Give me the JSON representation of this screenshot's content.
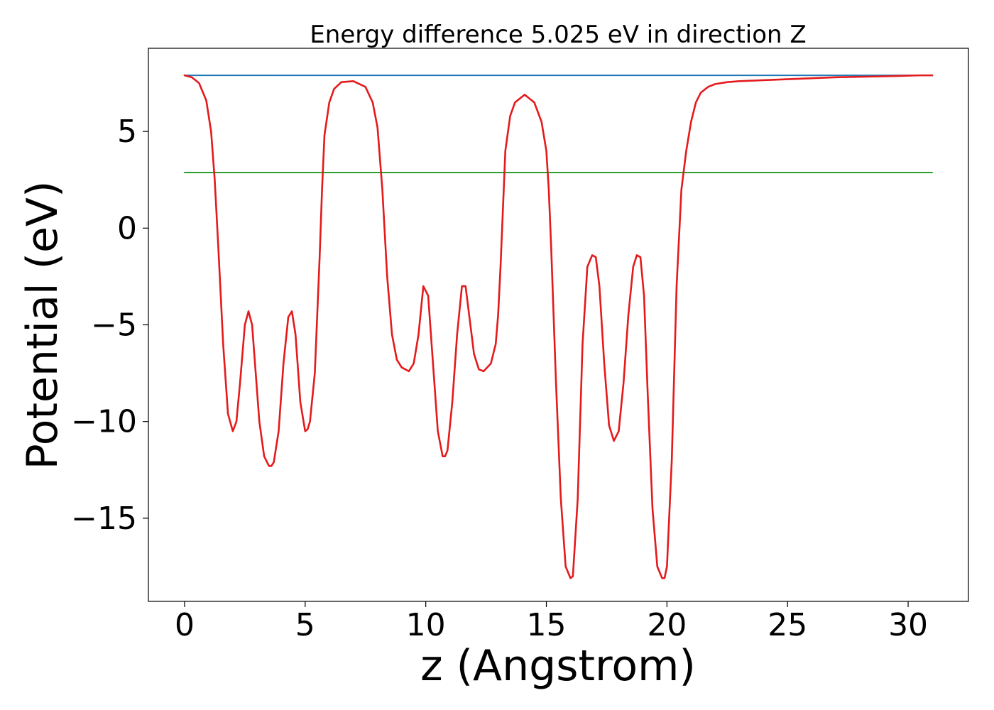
{
  "chart_data": {
    "type": "line",
    "title": "Energy difference 5.025 eV in direction Z",
    "xlabel": "z (Angstrom)",
    "ylabel": "Potential (eV)",
    "xlim": [
      -1.5,
      32.5
    ],
    "ylim": [
      -19.3,
      9.3
    ],
    "x_ticks": [
      0,
      5,
      10,
      15,
      20,
      25,
      30
    ],
    "y_ticks": [
      -15,
      -10,
      -5,
      0,
      5
    ],
    "x_tick_labels": [
      "0",
      "5",
      "10",
      "15",
      "20",
      "25",
      "30"
    ],
    "y_tick_labels": [
      "−15",
      "−10",
      "−5",
      "0",
      "5"
    ],
    "grid": false,
    "legend": "none",
    "series": [
      {
        "kind": "hline",
        "color": "#1f77b4",
        "x": [
          0,
          31
        ],
        "y": [
          7.9,
          7.9
        ]
      },
      {
        "kind": "hline",
        "color": "#2ca02c",
        "x": [
          0,
          31
        ],
        "y": [
          2.875,
          2.875
        ]
      },
      {
        "kind": "curve",
        "color": "#e41a1c",
        "x": [
          0,
          0.3,
          0.6,
          0.9,
          1.1,
          1.25,
          1.4,
          1.6,
          1.8,
          2.0,
          2.15,
          2.3,
          2.5,
          2.65,
          2.8,
          2.95,
          3.1,
          3.3,
          3.5,
          3.6,
          3.7,
          3.9,
          4.1,
          4.3,
          4.45,
          4.6,
          4.8,
          5.0,
          5.1,
          5.2,
          5.4,
          5.6,
          5.7,
          5.8,
          6.0,
          6.2,
          6.5,
          7.0,
          7.5,
          7.8,
          8.0,
          8.2,
          8.4,
          8.6,
          8.8,
          9.0,
          9.3,
          9.5,
          9.7,
          9.9,
          10.1,
          10.3,
          10.5,
          10.7,
          10.8,
          10.9,
          11.1,
          11.3,
          11.5,
          11.65,
          11.8,
          12.0,
          12.2,
          12.4,
          12.7,
          12.9,
          13.0,
          13.1,
          13.2,
          13.3,
          13.5,
          13.7,
          14.1,
          14.5,
          14.8,
          15.0,
          15.1,
          15.2,
          15.4,
          15.6,
          15.8,
          16.0,
          16.1,
          16.3,
          16.5,
          16.7,
          16.9,
          17.05,
          17.2,
          17.4,
          17.6,
          17.8,
          18.0,
          18.2,
          18.4,
          18.6,
          18.75,
          18.9,
          19.05,
          19.2,
          19.4,
          19.6,
          19.8,
          19.9,
          20.0,
          20.2,
          20.4,
          20.6,
          20.8,
          21.0,
          21.2,
          21.4,
          21.7,
          22.0,
          22.5,
          23.0,
          25.0,
          27.0,
          29.0,
          30.5,
          31.0
        ],
        "y": [
          7.9,
          7.8,
          7.5,
          6.6,
          5.0,
          2.5,
          -1.0,
          -6.0,
          -9.6,
          -10.5,
          -10.0,
          -8.0,
          -5.0,
          -4.3,
          -5.0,
          -7.5,
          -10.0,
          -11.8,
          -12.3,
          -12.3,
          -12.1,
          -10.5,
          -7.0,
          -4.6,
          -4.3,
          -5.5,
          -9.0,
          -10.5,
          -10.4,
          -10.0,
          -7.5,
          -1.5,
          2.0,
          4.8,
          6.5,
          7.2,
          7.55,
          7.6,
          7.3,
          6.5,
          5.2,
          2.0,
          -2.5,
          -5.5,
          -6.8,
          -7.2,
          -7.4,
          -7.0,
          -5.5,
          -3.0,
          -3.5,
          -7.0,
          -10.5,
          -11.8,
          -11.8,
          -11.5,
          -9.0,
          -5.5,
          -3.0,
          -3.0,
          -4.5,
          -6.5,
          -7.3,
          -7.4,
          -7.0,
          -6.0,
          -4.5,
          -2.0,
          1.0,
          4.0,
          5.8,
          6.5,
          6.9,
          6.5,
          5.5,
          4.0,
          2.0,
          -1.0,
          -8.0,
          -14.0,
          -17.5,
          -18.1,
          -18.0,
          -14.0,
          -6.0,
          -2.0,
          -1.4,
          -1.5,
          -3.0,
          -7.0,
          -10.2,
          -11.0,
          -10.5,
          -8.0,
          -4.5,
          -2.0,
          -1.4,
          -1.5,
          -3.5,
          -8.5,
          -14.5,
          -17.5,
          -18.1,
          -18.1,
          -17.5,
          -12.0,
          -3.0,
          2.0,
          4.0,
          5.5,
          6.5,
          7.0,
          7.3,
          7.45,
          7.55,
          7.6,
          7.7,
          7.8,
          7.85,
          7.9,
          7.9
        ]
      }
    ]
  }
}
